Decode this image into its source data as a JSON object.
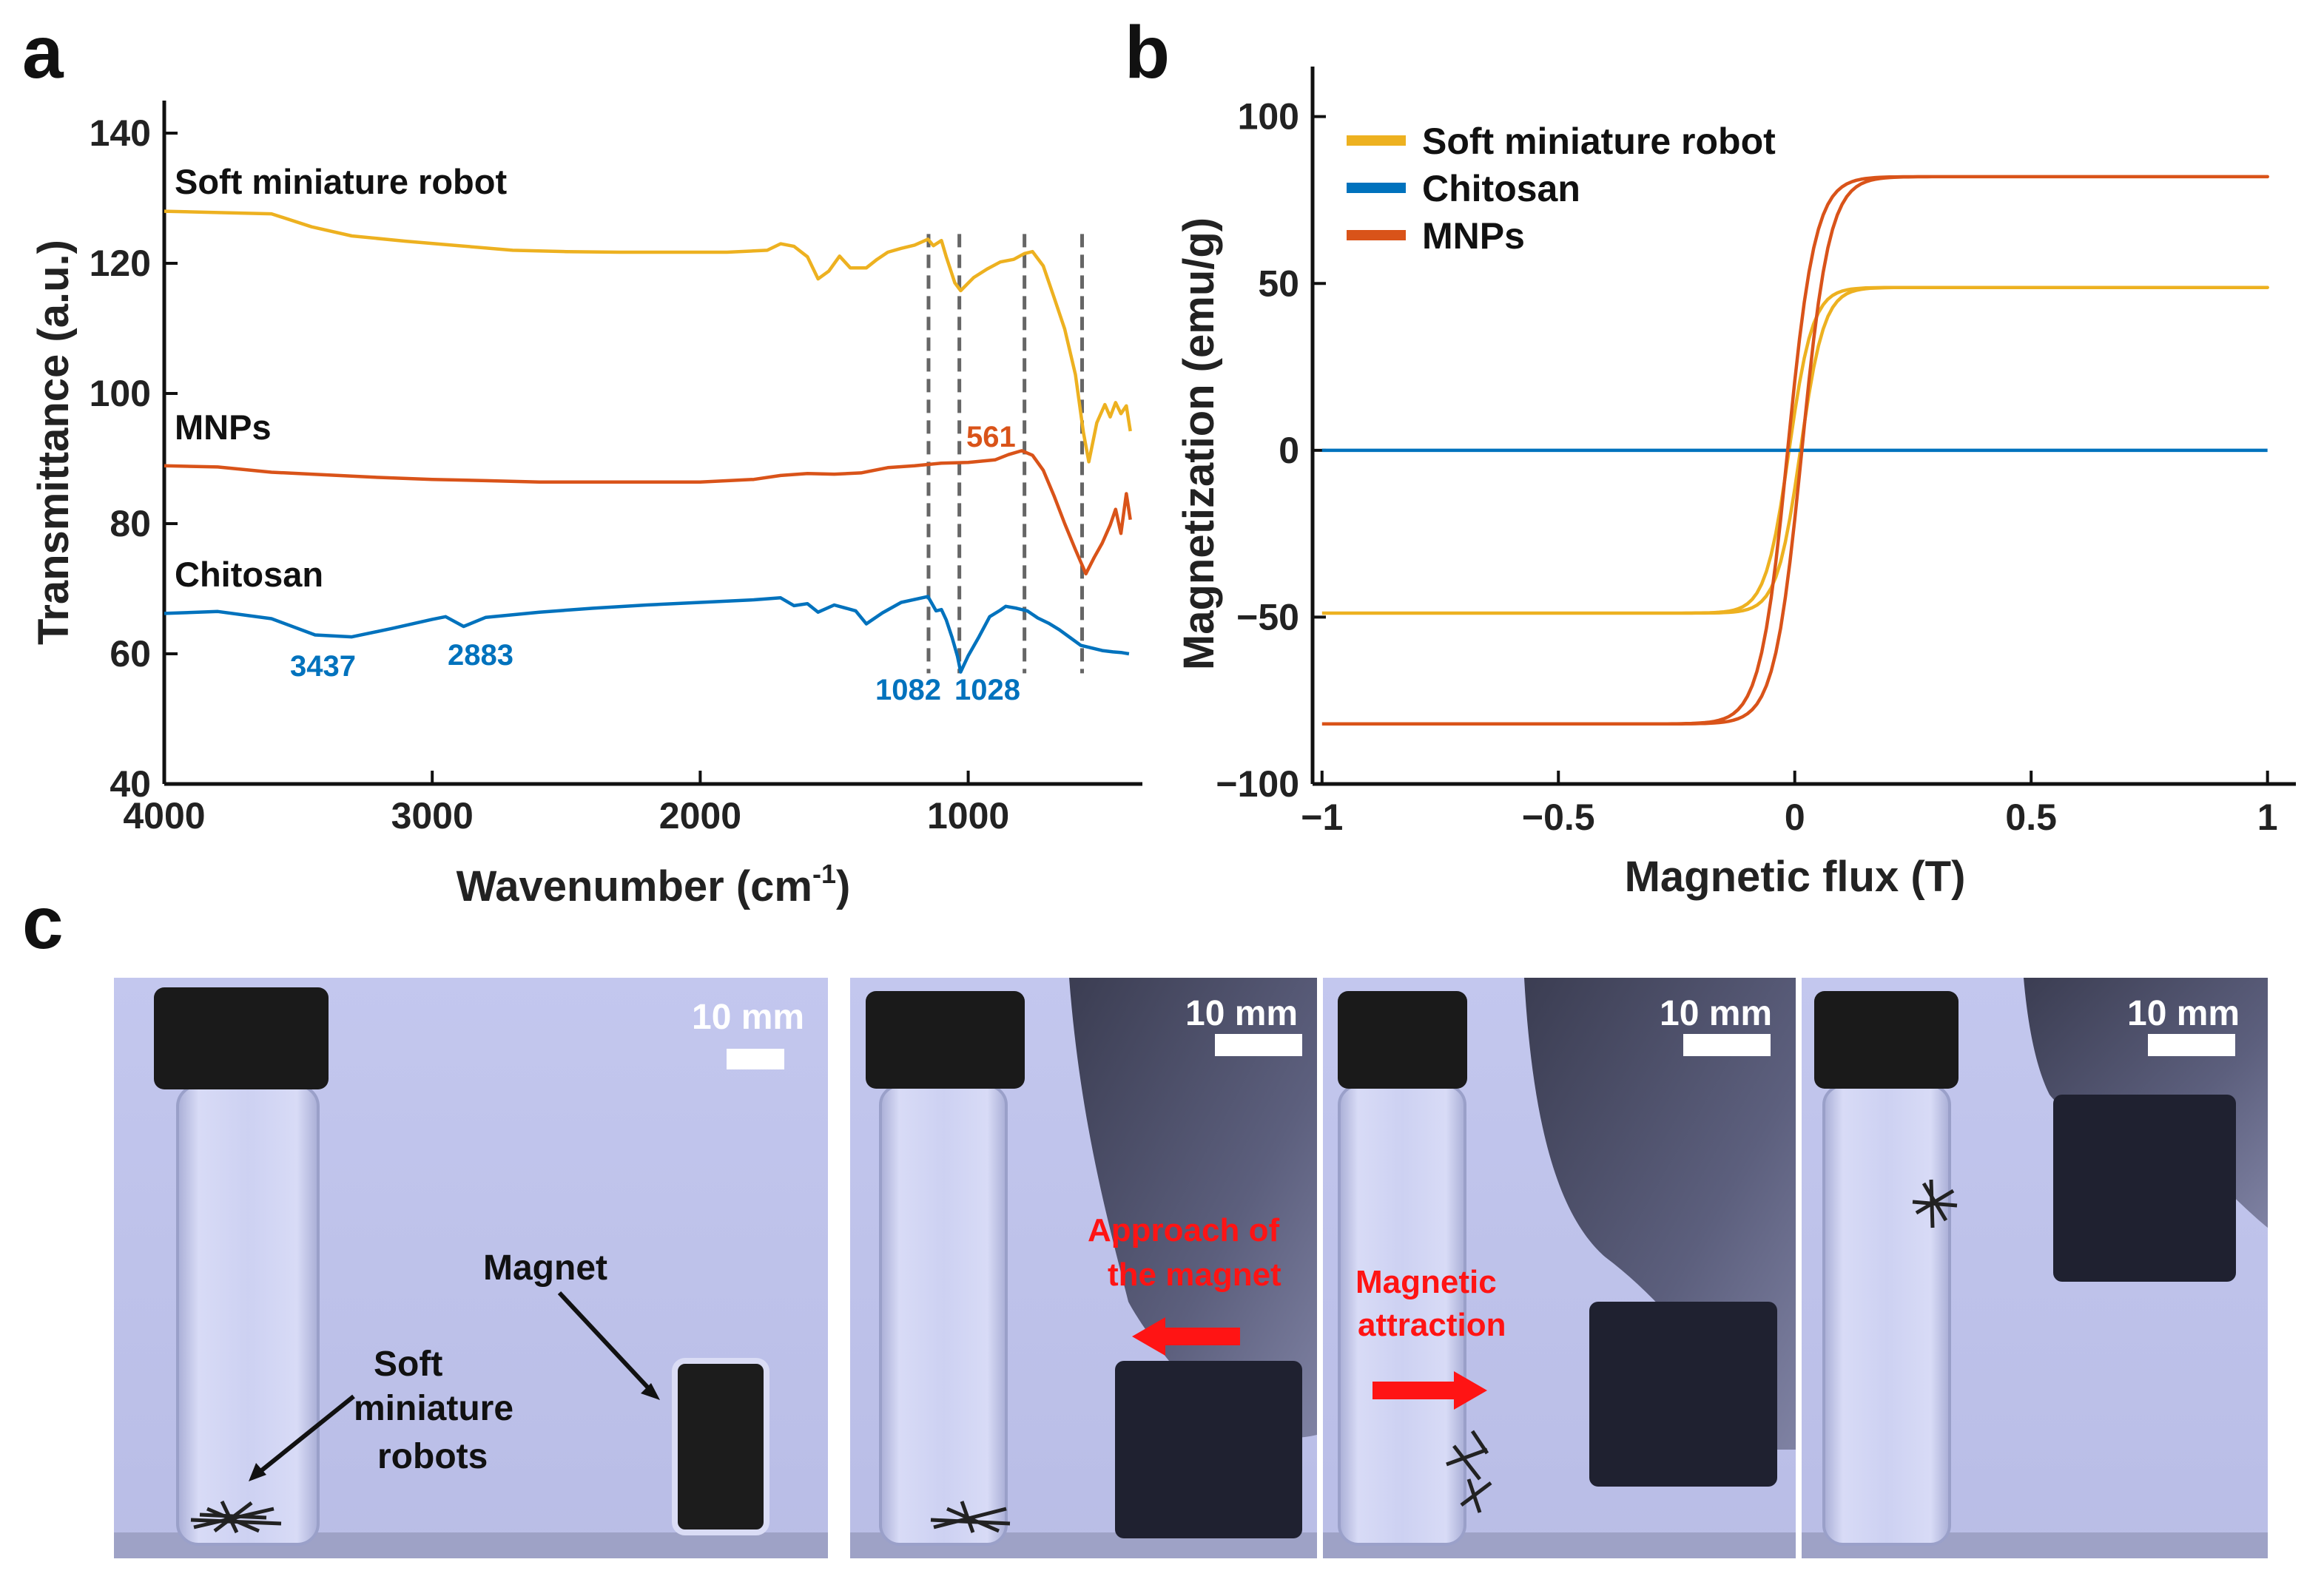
{
  "panel_labels": {
    "a": "a",
    "b": "b",
    "c": "c"
  },
  "chart_data": [
    {
      "type": "line",
      "panel": "a",
      "title": "",
      "xlabel": "Wavenumber (cm",
      "xlabel_sup": "-1",
      "xlabel_close": ")",
      "ylabel": "Transmittance (a.u.)",
      "xlim": [
        4000,
        350
      ],
      "ylim": [
        40,
        145
      ],
      "x_ticks": [
        4000,
        3000,
        2000,
        1000
      ],
      "y_ticks": [
        40,
        60,
        80,
        100,
        120,
        140
      ],
      "series": [
        {
          "name": "Soft miniature robot",
          "color": "#EDB120",
          "points": [
            [
              4000,
              128
            ],
            [
              3800,
              127.8
            ],
            [
              3600,
              127.6
            ],
            [
              3450,
              125.6
            ],
            [
              3300,
              124.2
            ],
            [
              3100,
              123.4
            ],
            [
              2900,
              122.7
            ],
            [
              2700,
              122
            ],
            [
              2500,
              121.8
            ],
            [
              2300,
              121.7
            ],
            [
              2100,
              121.7
            ],
            [
              1900,
              121.7
            ],
            [
              1750,
              122
            ],
            [
              1700,
              123
            ],
            [
              1650,
              122.6
            ],
            [
              1600,
              121
            ],
            [
              1560,
              117.6
            ],
            [
              1520,
              118.8
            ],
            [
              1480,
              121.1
            ],
            [
              1440,
              119.3
            ],
            [
              1380,
              119.3
            ],
            [
              1340,
              120.6
            ],
            [
              1300,
              121.7
            ],
            [
              1250,
              122.3
            ],
            [
              1200,
              122.8
            ],
            [
              1150,
              123.7
            ],
            [
              1130,
              122.7
            ],
            [
              1100,
              123.5
            ],
            [
              1082,
              121
            ],
            [
              1050,
              117
            ],
            [
              1028,
              115.8
            ],
            [
              980,
              117.8
            ],
            [
              930,
              119.1
            ],
            [
              880,
              120.2
            ],
            [
              830,
              120.6
            ],
            [
              790,
              121.5
            ],
            [
              760,
              121.8
            ],
            [
              720,
              119.6
            ],
            [
              680,
              114.8
            ],
            [
              640,
              109.9
            ],
            [
              600,
              102.9
            ],
            [
              570,
              94
            ],
            [
              550,
              89.5
            ],
            [
              520,
              95.5
            ],
            [
              490,
              98.3
            ],
            [
              470,
              96.4
            ],
            [
              450,
              98.6
            ],
            [
              430,
              96.9
            ],
            [
              410,
              98.1
            ],
            [
              395,
              94.2
            ]
          ]
        },
        {
          "name": "MNPs",
          "color": "#D95319",
          "points": [
            [
              4000,
              88.9
            ],
            [
              3800,
              88.7
            ],
            [
              3600,
              87.9
            ],
            [
              3400,
              87.5
            ],
            [
              3200,
              87.1
            ],
            [
              3000,
              86.8
            ],
            [
              2800,
              86.6
            ],
            [
              2600,
              86.4
            ],
            [
              2400,
              86.4
            ],
            [
              2200,
              86.4
            ],
            [
              2000,
              86.4
            ],
            [
              1800,
              86.8
            ],
            [
              1700,
              87.4
            ],
            [
              1600,
              87.7
            ],
            [
              1500,
              87.6
            ],
            [
              1400,
              87.8
            ],
            [
              1300,
              88.6
            ],
            [
              1200,
              88.9
            ],
            [
              1100,
              89.3
            ],
            [
              1000,
              89.4
            ],
            [
              900,
              89.8
            ],
            [
              850,
              90.6
            ],
            [
              800,
              91.2
            ],
            [
              760,
              90.5
            ],
            [
              720,
              88.2
            ],
            [
              680,
              84.3
            ],
            [
              640,
              80
            ],
            [
              600,
              76
            ],
            [
              561,
              72.3
            ],
            [
              530,
              74.8
            ],
            [
              500,
              77
            ],
            [
              470,
              79.8
            ],
            [
              450,
              82.2
            ],
            [
              430,
              78.5
            ],
            [
              410,
              84.6
            ],
            [
              395,
              80.6
            ]
          ]
        },
        {
          "name": "Chitosan",
          "color": "#0072BD",
          "points": [
            [
              4000,
              66.2
            ],
            [
              3800,
              66.5
            ],
            [
              3600,
              65.4
            ],
            [
              3437,
              62.9
            ],
            [
              3300,
              62.6
            ],
            [
              3150,
              63.9
            ],
            [
              3000,
              65.3
            ],
            [
              2950,
              65.7
            ],
            [
              2883,
              64.2
            ],
            [
              2800,
              65.6
            ],
            [
              2600,
              66.4
            ],
            [
              2400,
              67
            ],
            [
              2200,
              67.5
            ],
            [
              2000,
              67.9
            ],
            [
              1800,
              68.3
            ],
            [
              1700,
              68.6
            ],
            [
              1650,
              67.4
            ],
            [
              1600,
              67.7
            ],
            [
              1560,
              66.4
            ],
            [
              1500,
              67.5
            ],
            [
              1420,
              66.6
            ],
            [
              1380,
              64.6
            ],
            [
              1320,
              66.3
            ],
            [
              1250,
              67.9
            ],
            [
              1150,
              68.8
            ],
            [
              1120,
              66.6
            ],
            [
              1100,
              66.8
            ],
            [
              1082,
              65.2
            ],
            [
              1060,
              62.5
            ],
            [
              1040,
              59.6
            ],
            [
              1028,
              57.2
            ],
            [
              1000,
              59.7
            ],
            [
              960,
              62.6
            ],
            [
              920,
              65.7
            ],
            [
              880,
              66.7
            ],
            [
              860,
              67.3
            ],
            [
              820,
              67
            ],
            [
              780,
              66.6
            ],
            [
              740,
              65.5
            ],
            [
              700,
              64.7
            ],
            [
              660,
              63.7
            ],
            [
              620,
              62.5
            ],
            [
              580,
              61.3
            ],
            [
              540,
              60.9
            ],
            [
              500,
              60.5
            ],
            [
              460,
              60.3
            ],
            [
              430,
              60.2
            ],
            [
              400,
              60
            ]
          ]
        }
      ],
      "peak_labels": [
        {
          "text": "3437",
          "color": "#0072BD"
        },
        {
          "text": "2883",
          "color": "#0072BD"
        },
        {
          "text": "1082",
          "color": "#0072BD"
        },
        {
          "text": "1028",
          "color": "#0072BD"
        },
        {
          "text": "561",
          "color": "#D95319"
        }
      ],
      "guide_lines_x": [
        1148,
        1033,
        790,
        575
      ]
    },
    {
      "type": "line",
      "panel": "b",
      "title": "",
      "xlabel": "Magnetic flux (T)",
      "ylabel": "Magnetization (emu/g)",
      "xlim": [
        -1.02,
        1.06
      ],
      "ylim": [
        -100,
        115
      ],
      "x_ticks": [
        -1,
        -0.5,
        0,
        0.5,
        1
      ],
      "x_tick_labels": [
        "−1",
        "−0.5",
        "0",
        "0.5",
        "1"
      ],
      "y_ticks": [
        -100,
        -50,
        0,
        50,
        100
      ],
      "y_tick_labels": [
        "−100",
        "−50",
        "0",
        "50",
        "100"
      ],
      "legend_position": "top-left",
      "series": [
        {
          "name": "Soft miniature robot",
          "color": "#EDB120",
          "model": "hysteresis",
          "Ms": 48.8,
          "Hc": 0.012,
          "a": 0.05
        },
        {
          "name": "Chitosan",
          "color": "#0072BD",
          "model": "flat",
          "Ms": 0
        },
        {
          "name": "MNPs",
          "color": "#D95319",
          "model": "hysteresis",
          "Ms": 82,
          "Hc": 0.015,
          "a": 0.058
        }
      ]
    }
  ],
  "panel_a_series_labels": {
    "robot": "Soft miniature robot",
    "mnps": "MNPs",
    "chitosan": "Chitosan"
  },
  "panel_c": {
    "scale_bar_label": "10 mm",
    "magnet_label": "Magnet",
    "robots_label_lines": [
      "Soft",
      "miniature",
      "robots"
    ],
    "approach_lines": [
      "Approach of",
      "the magnet"
    ],
    "attraction_lines": [
      "Magnetic",
      "attraction"
    ],
    "colors": {
      "arrow": "#ff1414",
      "backdrop": "#c5c9ec"
    }
  }
}
